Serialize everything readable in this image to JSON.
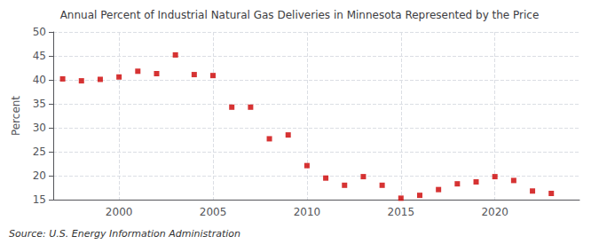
{
  "chart_data": {
    "type": "scatter",
    "title": "Annual Percent of Industrial Natural Gas Deliveries in Minnesota Represented by the Price",
    "ylabel": "Percent",
    "annotations": [
      "Source: U.S. Energy Information Administration"
    ],
    "x": [
      1997,
      1998,
      1999,
      2000,
      2001,
      2002,
      2003,
      2004,
      2005,
      2006,
      2007,
      2008,
      2009,
      2010,
      2011,
      2012,
      2013,
      2014,
      2015,
      2016,
      2017,
      2018,
      2019,
      2020,
      2021,
      2022,
      2023
    ],
    "values": [
      40.2,
      39.8,
      40.1,
      40.6,
      41.8,
      41.3,
      45.2,
      41.1,
      40.9,
      34.3,
      34.3,
      27.7,
      28.5,
      22.1,
      19.5,
      18.0,
      19.8,
      18.0,
      15.3,
      15.9,
      17.1,
      18.3,
      18.7,
      19.8,
      19.0,
      16.8,
      16.3
    ],
    "color": "#cc0000",
    "marker": "square",
    "xlim": [
      1996.5,
      2024.5
    ],
    "xticks": [
      2000,
      2005,
      2010,
      2015,
      2020
    ],
    "ylim": [
      15,
      50
    ],
    "yticks": [
      15,
      20,
      25,
      30,
      35,
      40,
      45,
      50
    ],
    "grid": true
  }
}
